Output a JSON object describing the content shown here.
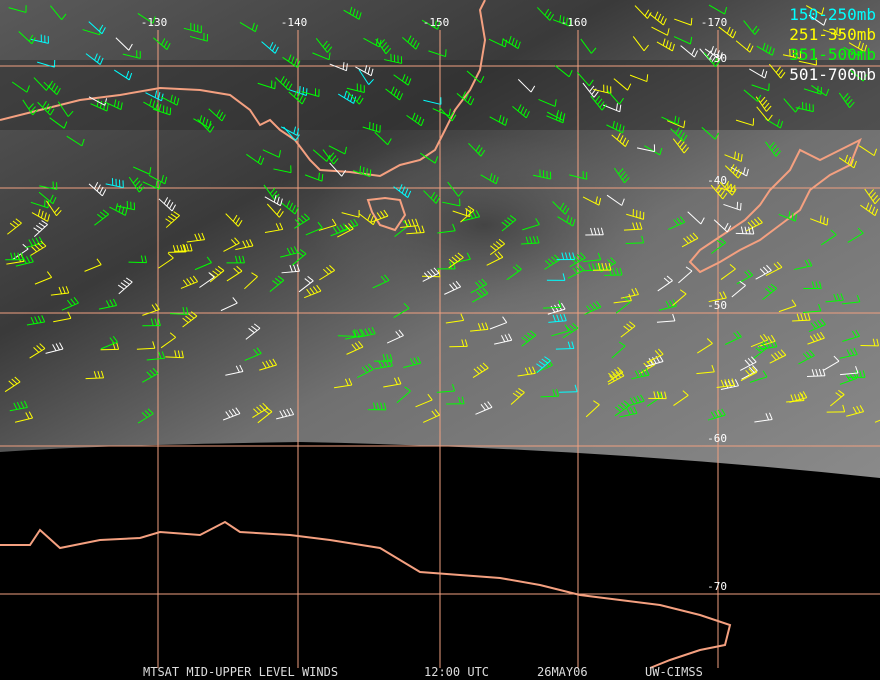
{
  "map": {
    "lon_labels": [
      "-130",
      "-140",
      "-150",
      "-160",
      "-170"
    ],
    "lat_labels": [
      "-30",
      "-40",
      "-50",
      "-60",
      "-70"
    ]
  },
  "legend": [
    {
      "label": "150-250mb",
      "color": "#00ffff"
    },
    {
      "label": "251-350mb",
      "color": "#ffff00"
    },
    {
      "label": "351-500mb",
      "color": "#00ff00"
    },
    {
      "label": "501-700mb",
      "color": "#ffffff"
    }
  ],
  "footer": [
    "MTSAT MID-UPPER LEVEL WINDS",
    "12:00 UTC",
    "26MAY06",
    "UW-CIMSS"
  ]
}
